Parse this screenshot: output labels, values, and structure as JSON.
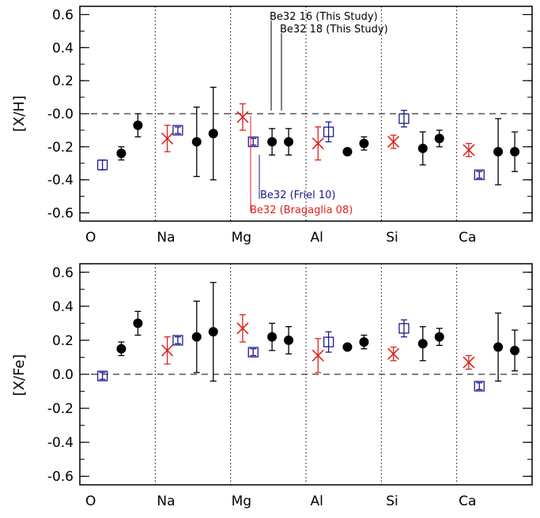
{
  "colors": {
    "friel": "#1a1a8c",
    "bragaglia": "#e0201e",
    "study": "#000000"
  },
  "chart_data": [
    {
      "type": "scatter",
      "ylabel": "[X/H]",
      "ylim": [
        -0.65,
        0.65
      ],
      "yticks": [
        "0.6",
        "0.4",
        "0.2",
        "-0.0",
        "-0.2",
        "-0.4",
        "-0.6"
      ],
      "categories": [
        "O",
        "Na",
        "Mg",
        "Al",
        "Si",
        "Ca"
      ],
      "reference_line": 0.0,
      "series": [
        {
          "name": "Be32 (Bragaglia 08)",
          "marker": "x",
          "color": "#e0201e",
          "points": [
            {
              "category": "Na",
              "y": -0.15,
              "err": 0.08
            },
            {
              "category": "Mg",
              "y": -0.02,
              "err": 0.08
            },
            {
              "category": "Al",
              "y": -0.18,
              "err": 0.1
            },
            {
              "category": "Si",
              "y": -0.17,
              "err": 0.04
            },
            {
              "category": "Ca",
              "y": -0.22,
              "err": 0.04
            }
          ]
        },
        {
          "name": "Be32 (Friel 10)",
          "marker": "square",
          "color": "#1a1a8c",
          "points": [
            {
              "category": "O",
              "y": -0.31,
              "err": 0.03
            },
            {
              "category": "Na",
              "y": -0.1,
              "err": 0.02
            },
            {
              "category": "Mg",
              "y": -0.17,
              "err": 0.02
            },
            {
              "category": "Al",
              "y": -0.11,
              "err": 0.06
            },
            {
              "category": "Si",
              "y": -0.03,
              "err": 0.05
            },
            {
              "category": "Ca",
              "y": -0.37,
              "err": 0.02
            }
          ]
        },
        {
          "name": "Be32 16 (This Study)",
          "marker": "circle",
          "color": "#000000",
          "points": [
            {
              "category": "O",
              "y": -0.24,
              "err": 0.04
            },
            {
              "category": "Na",
              "y": -0.17,
              "err": 0.21
            },
            {
              "category": "Mg",
              "y": -0.17,
              "err": 0.08
            },
            {
              "category": "Al",
              "y": -0.23,
              "err": 0.0
            },
            {
              "category": "Si",
              "y": -0.21,
              "err": 0.1
            },
            {
              "category": "Ca",
              "y": -0.23,
              "err": 0.2
            }
          ]
        },
        {
          "name": "Be32 18 (This Study)",
          "marker": "circle",
          "color": "#000000",
          "points": [
            {
              "category": "O",
              "y": -0.07,
              "err": 0.07
            },
            {
              "category": "Na",
              "y": -0.12,
              "err": 0.28
            },
            {
              "category": "Mg",
              "y": -0.17,
              "err": 0.08
            },
            {
              "category": "Al",
              "y": -0.18,
              "err": 0.04
            },
            {
              "category": "Si",
              "y": -0.15,
              "err": 0.05
            },
            {
              "category": "Ca",
              "y": -0.23,
              "err": 0.12
            }
          ]
        }
      ],
      "annotations": [
        {
          "text": "Be32 16 (This Study)",
          "color": "#000000"
        },
        {
          "text": "Be32 18 (This Study)",
          "color": "#000000"
        },
        {
          "text": "Be32 (Friel 10)",
          "color": "#1a1a8c"
        },
        {
          "text": "Be32 (Bragaglia 08)",
          "color": "#e0201e"
        }
      ]
    },
    {
      "type": "scatter",
      "ylabel": "[X/Fe]",
      "ylim": [
        -0.65,
        0.65
      ],
      "yticks": [
        "0.6",
        "0.4",
        "0.2",
        "0.0",
        "-0.2",
        "-0.4",
        "-0.6"
      ],
      "categories": [
        "O",
        "Na",
        "Mg",
        "Al",
        "Si",
        "Ca"
      ],
      "reference_line": 0.0,
      "series": [
        {
          "name": "Be32 (Bragaglia 08)",
          "marker": "x",
          "color": "#e0201e",
          "points": [
            {
              "category": "Na",
              "y": 0.14,
              "err": 0.08
            },
            {
              "category": "Mg",
              "y": 0.27,
              "err": 0.08
            },
            {
              "category": "Al",
              "y": 0.11,
              "err": 0.1
            },
            {
              "category": "Si",
              "y": 0.12,
              "err": 0.04
            },
            {
              "category": "Ca",
              "y": 0.07,
              "err": 0.04
            }
          ]
        },
        {
          "name": "Be32 (Friel 10)",
          "marker": "square",
          "color": "#1a1a8c",
          "points": [
            {
              "category": "O",
              "y": -0.01,
              "err": 0.02
            },
            {
              "category": "Na",
              "y": 0.2,
              "err": 0.02
            },
            {
              "category": "Mg",
              "y": 0.13,
              "err": 0.02
            },
            {
              "category": "Al",
              "y": 0.19,
              "err": 0.06
            },
            {
              "category": "Si",
              "y": 0.27,
              "err": 0.05
            },
            {
              "category": "Ca",
              "y": -0.07,
              "err": 0.02
            }
          ]
        },
        {
          "name": "Be32 16 (This Study)",
          "marker": "circle",
          "color": "#000000",
          "points": [
            {
              "category": "O",
              "y": 0.15,
              "err": 0.04
            },
            {
              "category": "Na",
              "y": 0.22,
              "err": 0.21
            },
            {
              "category": "Mg",
              "y": 0.22,
              "err": 0.08
            },
            {
              "category": "Al",
              "y": 0.16,
              "err": 0.0
            },
            {
              "category": "Si",
              "y": 0.18,
              "err": 0.1
            },
            {
              "category": "Ca",
              "y": 0.16,
              "err": 0.2
            }
          ]
        },
        {
          "name": "Be32 18 (This Study)",
          "marker": "circle",
          "color": "#000000",
          "points": [
            {
              "category": "O",
              "y": 0.3,
              "err": 0.07
            },
            {
              "category": "Na",
              "y": 0.25,
              "err": 0.29
            },
            {
              "category": "Mg",
              "y": 0.2,
              "err": 0.08
            },
            {
              "category": "Al",
              "y": 0.19,
              "err": 0.04
            },
            {
              "category": "Si",
              "y": 0.22,
              "err": 0.05
            },
            {
              "category": "Ca",
              "y": 0.14,
              "err": 0.12
            }
          ]
        }
      ]
    }
  ]
}
